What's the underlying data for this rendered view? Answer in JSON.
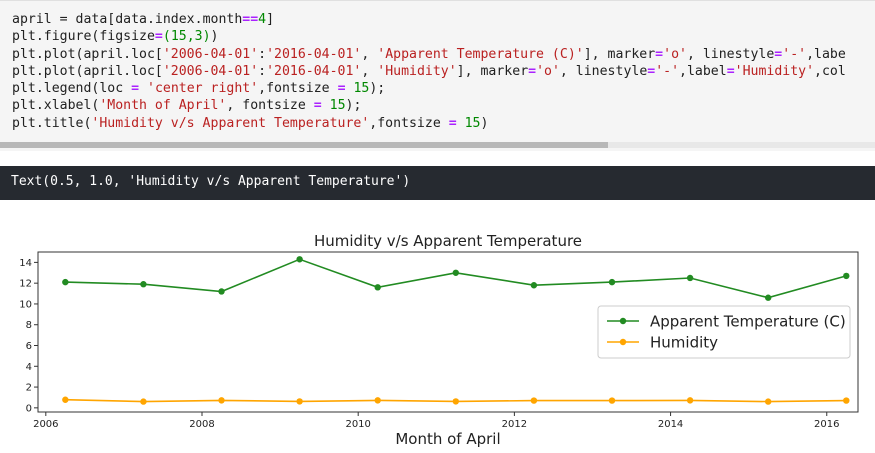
{
  "code_cell": {
    "lines": [
      [
        [
          "april ",
          ""
        ],
        [
          "=",
          ""
        ],
        [
          " data[data.index.month",
          ""
        ],
        [
          "==",
          "op"
        ],
        [
          "4",
          "num"
        ],
        [
          "]",
          ""
        ]
      ],
      [
        [
          "plt.figure(figsize",
          ""
        ],
        [
          "=",
          "op"
        ],
        [
          "(15,3)",
          "num"
        ],
        [
          ")",
          ""
        ]
      ],
      [
        [
          "plt.plot(april.loc[",
          ""
        ],
        [
          "'2006-04-01'",
          "str"
        ],
        [
          ":",
          ""
        ],
        [
          "'2016-04-01'",
          "str"
        ],
        [
          ", ",
          ""
        ],
        [
          "'Apparent Temperature (C)'",
          "str"
        ],
        [
          "], marker",
          ""
        ],
        [
          "=",
          "op"
        ],
        [
          "'o'",
          "str"
        ],
        [
          ", linestyle",
          ""
        ],
        [
          "=",
          "op"
        ],
        [
          "'-'",
          "str"
        ],
        [
          ",labe",
          ""
        ]
      ],
      [
        [
          "plt.plot(april.loc[",
          ""
        ],
        [
          "'2006-04-01'",
          "str"
        ],
        [
          ":",
          ""
        ],
        [
          "'2016-04-01'",
          "str"
        ],
        [
          ", ",
          ""
        ],
        [
          "'Humidity'",
          "str"
        ],
        [
          "], marker",
          ""
        ],
        [
          "=",
          "op"
        ],
        [
          "'o'",
          "str"
        ],
        [
          ", linestyle",
          ""
        ],
        [
          "=",
          "op"
        ],
        [
          "'-'",
          "str"
        ],
        [
          ",label",
          ""
        ],
        [
          "=",
          "op"
        ],
        [
          "'Humidity'",
          "str"
        ],
        [
          ",col",
          ""
        ]
      ],
      [
        [
          "plt.legend(loc ",
          ""
        ],
        [
          "=",
          "op"
        ],
        [
          " ",
          ""
        ],
        [
          "'center right'",
          "str"
        ],
        [
          ",fontsize ",
          ""
        ],
        [
          "=",
          "op"
        ],
        [
          " ",
          ""
        ],
        [
          "15",
          "num"
        ],
        [
          ");",
          ""
        ]
      ],
      [
        [
          "plt.xlabel(",
          ""
        ],
        [
          "'Month of April'",
          "str"
        ],
        [
          ", fontsize ",
          ""
        ],
        [
          "=",
          "op"
        ],
        [
          " ",
          ""
        ],
        [
          "15",
          "num"
        ],
        [
          ");",
          ""
        ]
      ],
      [
        [
          "plt.title(",
          ""
        ],
        [
          "'Humidity v/s Apparent Temperature'",
          "str"
        ],
        [
          ",fontsize ",
          ""
        ],
        [
          "=",
          "op"
        ],
        [
          " ",
          ""
        ],
        [
          "15",
          "num"
        ],
        [
          ")",
          ""
        ]
      ]
    ]
  },
  "output": {
    "text": "Text(0.5, 1.0, 'Humidity v/s Apparent Temperature')"
  },
  "chart_data": {
    "type": "line",
    "title": "Humidity v/s Apparent Temperature",
    "xlabel": "Month of April",
    "ylabel": "",
    "x_ticks": [
      "2006",
      "2008",
      "2010",
      "2012",
      "2014",
      "2016"
    ],
    "y_ticks": [
      "0",
      "2",
      "4",
      "6",
      "8",
      "10",
      "12",
      "14"
    ],
    "xlim": [
      2005.9,
      2016.4
    ],
    "ylim": [
      -0.4,
      15.0
    ],
    "x": [
      "2006-04",
      "2007-04",
      "2008-04",
      "2009-04",
      "2010-04",
      "2011-04",
      "2012-04",
      "2013-04",
      "2014-04",
      "2015-04",
      "2016-04"
    ],
    "series": [
      {
        "name": "Apparent Temperature (C)",
        "color": "#228b22",
        "values": [
          12.1,
          11.9,
          11.2,
          14.3,
          11.6,
          13.0,
          11.8,
          12.1,
          12.5,
          10.6,
          12.7
        ]
      },
      {
        "name": "Humidity",
        "color": "#ffa500",
        "values": [
          0.78,
          0.6,
          0.72,
          0.62,
          0.72,
          0.62,
          0.7,
          0.7,
          0.72,
          0.6,
          0.7
        ]
      }
    ],
    "legend_position": "center right",
    "grid": false
  }
}
